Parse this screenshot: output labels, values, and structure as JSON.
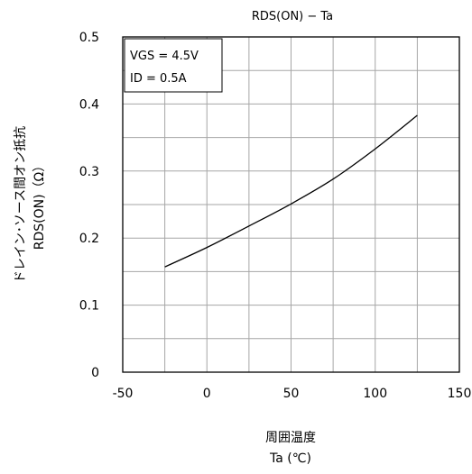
{
  "chart_data": {
    "type": "line",
    "title": "RDS(ON) − Ta",
    "xlabel": [
      "周囲温度",
      "Ta (℃)"
    ],
    "ylabel": [
      "ドレイン･ソース間オン抵抗",
      "RDS(ON)（Ω）"
    ],
    "xlim": [
      -50,
      150
    ],
    "ylim": [
      0,
      0.5
    ],
    "xticks": [
      -50,
      0,
      50,
      100,
      150
    ],
    "xtick_labels": [
      "-50",
      "0",
      "50",
      "100",
      "150"
    ],
    "yticks": [
      0,
      0.1,
      0.2,
      0.3,
      0.4,
      0.5
    ],
    "ytick_labels": [
      "0",
      "0.1",
      "0.2",
      "0.3",
      "0.4",
      "0.5"
    ],
    "x_minor_step": 25,
    "y_minor_step": 0.05,
    "grid": true,
    "annotation": [
      "VGS = 4.5V",
      "ID = 0.5A"
    ],
    "series": [
      {
        "color": "#000000",
        "x": [
          -25,
          0,
          25,
          50,
          75,
          100,
          125
        ],
        "y": [
          0.157,
          0.186,
          0.218,
          0.251,
          0.288,
          0.333,
          0.383
        ]
      }
    ]
  }
}
